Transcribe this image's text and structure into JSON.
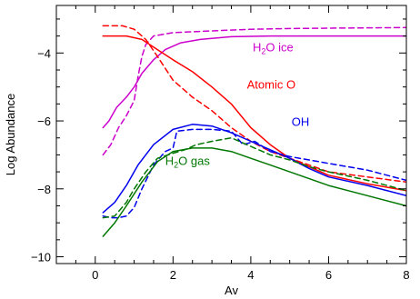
{
  "chart_data": {
    "type": "line",
    "xlabel": "Av",
    "ylabel": "Log Abundance",
    "xlim": [
      -1,
      8
    ],
    "ylim": [
      -10.2,
      -2.6
    ],
    "x_ticks": [
      {
        "value": 0,
        "label": "0"
      },
      {
        "value": 2,
        "label": "2"
      },
      {
        "value": 4,
        "label": "4"
      },
      {
        "value": 6,
        "label": "6"
      },
      {
        "value": 8,
        "label": "8"
      }
    ],
    "y_ticks": [
      {
        "value": -4,
        "label": "−4"
      },
      {
        "value": -6,
        "label": "−6"
      },
      {
        "value": -8,
        "label": "−8"
      },
      {
        "value": -10,
        "label": "−10"
      }
    ],
    "grid": false,
    "series": [
      {
        "key": "h2o-ice",
        "color": "#cc00cc",
        "style": "solid",
        "points": [
          [
            0.2,
            -6.2
          ],
          [
            0.35,
            -6.0
          ],
          [
            0.55,
            -5.6
          ],
          [
            0.8,
            -5.3
          ],
          [
            1.0,
            -5.0
          ],
          [
            1.2,
            -4.6
          ],
          [
            1.5,
            -4.2
          ],
          [
            1.8,
            -3.9
          ],
          [
            2.2,
            -3.7
          ],
          [
            2.7,
            -3.6
          ],
          [
            3.5,
            -3.52
          ],
          [
            4.5,
            -3.5
          ],
          [
            6,
            -3.5
          ],
          [
            8,
            -3.5
          ]
        ]
      },
      {
        "key": "h2o-ice",
        "color": "#cc00cc",
        "style": "dashed",
        "points": [
          [
            0.2,
            -7.0
          ],
          [
            0.4,
            -6.7
          ],
          [
            0.6,
            -6.2
          ],
          [
            0.8,
            -5.85
          ],
          [
            1.0,
            -5.4
          ],
          [
            1.1,
            -4.7
          ],
          [
            1.2,
            -4.1
          ],
          [
            1.3,
            -3.75
          ],
          [
            1.5,
            -3.5
          ],
          [
            2,
            -3.4
          ],
          [
            3,
            -3.35
          ],
          [
            4,
            -3.3
          ],
          [
            5,
            -3.28
          ],
          [
            6,
            -3.27
          ],
          [
            8,
            -3.25
          ]
        ]
      },
      {
        "key": "atomic-o",
        "color": "#ff0000",
        "style": "solid",
        "points": [
          [
            0.2,
            -3.5
          ],
          [
            0.8,
            -3.5
          ],
          [
            1.2,
            -3.6
          ],
          [
            1.6,
            -3.9
          ],
          [
            2.0,
            -4.2
          ],
          [
            2.5,
            -4.55
          ],
          [
            3.0,
            -5.0
          ],
          [
            3.5,
            -5.5
          ],
          [
            4.0,
            -6.2
          ],
          [
            4.5,
            -6.7
          ],
          [
            5.0,
            -7.1
          ],
          [
            5.5,
            -7.35
          ],
          [
            6.0,
            -7.6
          ],
          [
            7.0,
            -7.85
          ],
          [
            8.0,
            -8.05
          ]
        ]
      },
      {
        "key": "atomic-o",
        "color": "#ff0000",
        "style": "dashed",
        "points": [
          [
            0.2,
            -3.2
          ],
          [
            0.7,
            -3.2
          ],
          [
            1.0,
            -3.3
          ],
          [
            1.3,
            -3.6
          ],
          [
            1.6,
            -4.1
          ],
          [
            2.0,
            -4.8
          ],
          [
            2.5,
            -5.3
          ],
          [
            3.0,
            -5.7
          ],
          [
            3.5,
            -6.2
          ],
          [
            4.0,
            -6.6
          ],
          [
            4.5,
            -6.9
          ],
          [
            5.0,
            -7.1
          ],
          [
            5.5,
            -7.3
          ],
          [
            6.0,
            -7.5
          ],
          [
            7.0,
            -7.65
          ],
          [
            8.0,
            -7.8
          ]
        ]
      },
      {
        "key": "oh",
        "color": "#0000ee",
        "style": "solid",
        "points": [
          [
            0.2,
            -8.7
          ],
          [
            0.5,
            -8.4
          ],
          [
            0.8,
            -7.9
          ],
          [
            1.1,
            -7.3
          ],
          [
            1.5,
            -6.7
          ],
          [
            2.0,
            -6.25
          ],
          [
            2.5,
            -6.1
          ],
          [
            3.0,
            -6.15
          ],
          [
            3.5,
            -6.35
          ],
          [
            4.0,
            -6.6
          ],
          [
            4.5,
            -6.85
          ],
          [
            5.0,
            -7.1
          ],
          [
            5.5,
            -7.4
          ],
          [
            6.0,
            -7.65
          ],
          [
            7.0,
            -7.9
          ],
          [
            8.0,
            -8.2
          ]
        ]
      },
      {
        "key": "oh",
        "color": "#0000ee",
        "style": "dashed",
        "points": [
          [
            0.2,
            -8.8
          ],
          [
            0.4,
            -8.85
          ],
          [
            0.6,
            -8.85
          ],
          [
            0.8,
            -8.8
          ],
          [
            1.0,
            -8.55
          ],
          [
            1.2,
            -8.0
          ],
          [
            1.5,
            -7.3
          ],
          [
            1.8,
            -6.9
          ],
          [
            2.0,
            -6.8
          ],
          [
            2.1,
            -6.3
          ],
          [
            2.5,
            -6.25
          ],
          [
            3.0,
            -6.25
          ],
          [
            3.5,
            -6.3
          ],
          [
            3.8,
            -6.7
          ],
          [
            4.1,
            -6.6
          ],
          [
            4.5,
            -6.9
          ],
          [
            5.0,
            -7.05
          ],
          [
            5.5,
            -7.15
          ],
          [
            6.0,
            -7.25
          ],
          [
            7.0,
            -7.45
          ],
          [
            8.0,
            -7.75
          ]
        ]
      },
      {
        "key": "h2o-gas",
        "color": "#007700",
        "style": "solid",
        "points": [
          [
            0.2,
            -9.4
          ],
          [
            0.5,
            -9.0
          ],
          [
            0.8,
            -8.5
          ],
          [
            1.2,
            -7.8
          ],
          [
            1.6,
            -7.2
          ],
          [
            2.0,
            -6.9
          ],
          [
            2.5,
            -6.8
          ],
          [
            3.0,
            -6.8
          ],
          [
            3.5,
            -6.9
          ],
          [
            4.0,
            -7.1
          ],
          [
            4.5,
            -7.3
          ],
          [
            5.0,
            -7.5
          ],
          [
            5.5,
            -7.7
          ],
          [
            6.0,
            -7.9
          ],
          [
            7.0,
            -8.2
          ],
          [
            8.0,
            -8.5
          ]
        ]
      },
      {
        "key": "h2o-gas",
        "color": "#007700",
        "style": "dashed",
        "points": [
          [
            0.2,
            -8.85
          ],
          [
            0.5,
            -8.8
          ],
          [
            0.8,
            -8.4
          ],
          [
            1.0,
            -8.0
          ],
          [
            1.3,
            -7.5
          ],
          [
            1.6,
            -7.1
          ],
          [
            2.0,
            -6.95
          ],
          [
            2.3,
            -6.85
          ],
          [
            2.6,
            -6.7
          ],
          [
            3.0,
            -6.6
          ],
          [
            3.5,
            -6.5
          ],
          [
            4.0,
            -6.75
          ],
          [
            4.5,
            -7.0
          ],
          [
            5.0,
            -7.15
          ],
          [
            5.5,
            -7.35
          ],
          [
            6.0,
            -7.5
          ],
          [
            7.0,
            -7.75
          ],
          [
            8.0,
            -8.05
          ]
        ]
      }
    ],
    "annotations": [
      {
        "key": "h2o-ice",
        "pre": "H",
        "sub": "2",
        "post": "O ice",
        "color": "#cc00cc",
        "x": 4.05,
        "y": -3.95
      },
      {
        "key": "atomic-o",
        "pre": "Atomic O",
        "sub": "",
        "post": "",
        "color": "#ff0000",
        "x": 3.9,
        "y": -5.05
      },
      {
        "key": "oh",
        "pre": "OH",
        "sub": "",
        "post": "",
        "color": "#0000ee",
        "x": 5.05,
        "y": -6.15
      },
      {
        "key": "h2o-gas",
        "pre": "H",
        "sub": "2",
        "post": "O gas",
        "color": "#007700",
        "x": 1.8,
        "y": -7.3
      }
    ]
  }
}
